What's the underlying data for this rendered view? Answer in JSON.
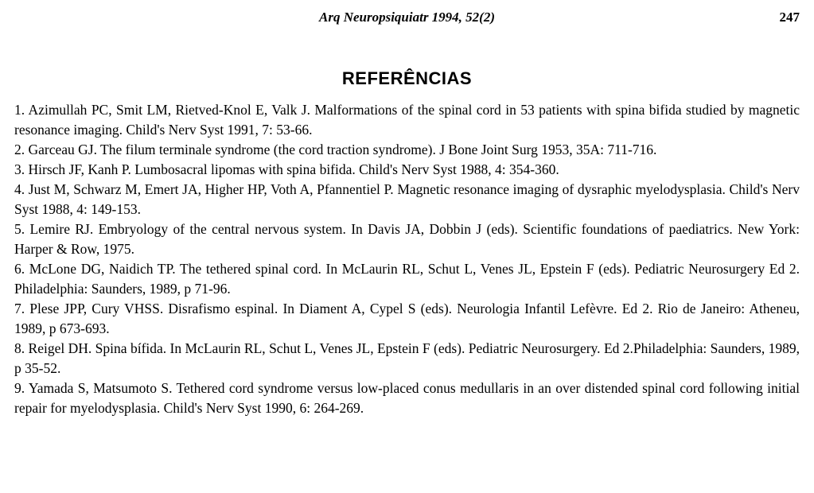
{
  "header": {
    "journal": "Arq Neuropsiquiatr 1994, 52(2)",
    "page": "247"
  },
  "title": "REFERÊNCIAS",
  "references": [
    "1. Azimullah PC, Smit LM, Rietved-Knol E, Valk J. Malformations of the spinal cord in 53 patients with spina bifida studied by magnetic resonance imaging. Child's Nerv Syst 1991, 7: 53-66.",
    "2. Garceau GJ. The filum terminale syndrome (the cord traction syndrome). J Bone Joint Surg 1953, 35A: 711-716.",
    "3. Hirsch JF, Kanh P. Lumbosacral lipomas with spina bifida. Child's Nerv Syst 1988, 4: 354-360.",
    "4. Just M, Schwarz M, Emert JA, Higher HP, Voth A, Pfannentiel P. Magnetic resonance imaging of dysraphic myelodysplasia. Child's Nerv Syst 1988, 4: 149-153.",
    "5. Lemire RJ. Embryology of the central nervous system. In Davis JA, Dobbin J (eds). Scientific foundations of paediatrics. New York: Harper & Row, 1975.",
    "6. McLone DG, Naidich TP. The tethered spinal cord. In McLaurin RL, Schut L, Venes JL, Epstein F (eds). Pediatric Neurosurgery Ed 2. Philadelphia: Saunders, 1989, p 71-96.",
    "7. Plese JPP, Cury VHSS. Disrafismo espinal. In Diament A, Cypel S (eds). Neurologia Infantil Lefèvre. Ed 2. Rio de Janeiro: Atheneu, 1989, p 673-693.",
    "8. Reigel DH. Spina bífida. In McLaurin RL, Schut L, Venes JL, Epstein F (eds). Pediatric Neurosurgery. Ed 2.Philadelphia: Saunders, 1989, p 35-52.",
    "9. Yamada S, Matsumoto S. Tethered cord syndrome versus low-placed conus medullaris in an over distended spinal cord following initial repair for myelodysplasia. Child's Nerv Syst 1990, 6: 264-269."
  ]
}
